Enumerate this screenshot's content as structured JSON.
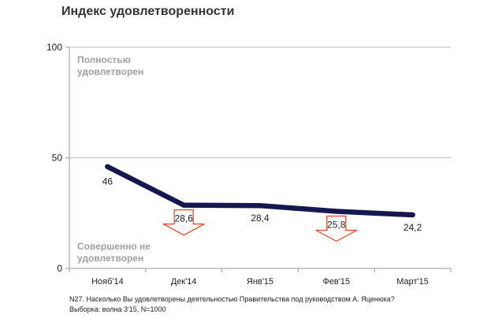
{
  "title": "Индекс удовлетворенности",
  "annotations": {
    "top": [
      "Полностью",
      "удовлетворен"
    ],
    "bottom": [
      "Совершенно не",
      "удовлетворен"
    ]
  },
  "chart_data": {
    "type": "line",
    "title": "Индекс удовлетворенности",
    "categories": [
      "Нояб'14",
      "Дек'14",
      "Янв'15",
      "Фев'15",
      "Март'15"
    ],
    "series": [
      {
        "values": [
          46,
          28.6,
          28.4,
          25.8,
          24.2
        ],
        "labels": [
          "46",
          "28,6",
          "28,4",
          "25,8",
          "24,2"
        ],
        "color": "#17174f"
      }
    ],
    "down_arrows_at": [
      1,
      3
    ],
    "arrow_color": "#e8401c",
    "ylim": [
      0,
      100
    ],
    "yticks": [
      0,
      50,
      100
    ],
    "grid": "horizontal at 50 and 100",
    "legend": "none"
  },
  "footnotes": {
    "question": "N27. Насколько Вы удовлетворены деятельностью Правительства под руководством А. Яценюка?",
    "sample": "Выборка: волна 3'15, N=1000"
  }
}
